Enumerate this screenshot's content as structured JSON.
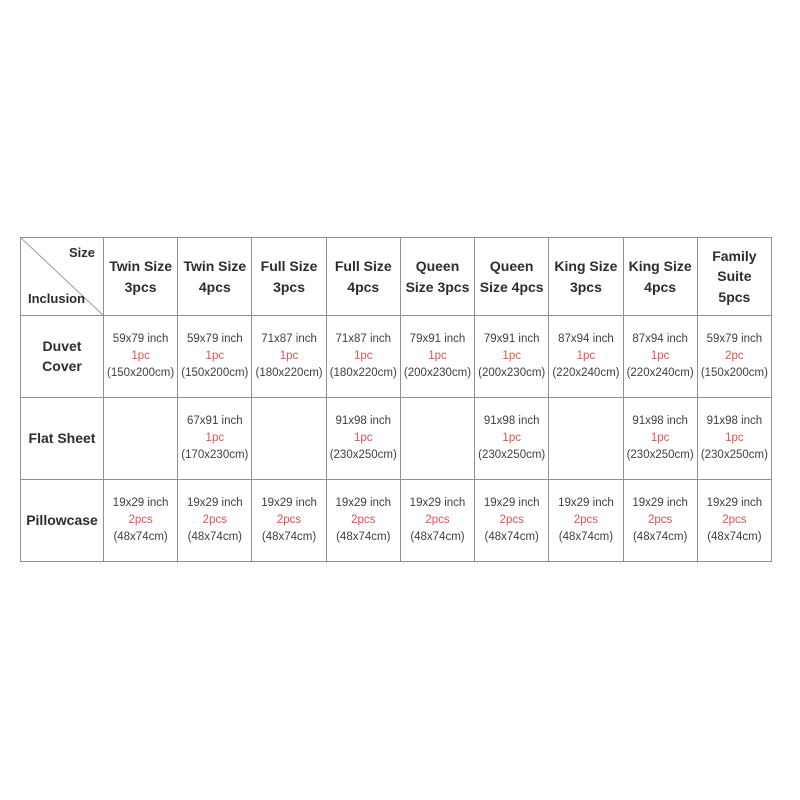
{
  "chart_data": {
    "type": "table",
    "corner": {
      "size_label": "Size",
      "inclusion_label": "Inclusion"
    },
    "columns": [
      {
        "id": "twin-size-3pcs",
        "label": "Twin Size\n3pcs"
      },
      {
        "id": "twin-size-4pcs",
        "label": "Twin Size\n4pcs"
      },
      {
        "id": "full-size-3pcs",
        "label": "Full Size\n3pcs"
      },
      {
        "id": "full-size-4pcs",
        "label": "Full Size\n4pcs"
      },
      {
        "id": "queen-size-3pcs",
        "label": "Queen\nSize 3pcs"
      },
      {
        "id": "queen-size-4pcs",
        "label": "Queen\nSize 4pcs"
      },
      {
        "id": "king-size-3pcs",
        "label": "King Size\n3pcs"
      },
      {
        "id": "king-size-4pcs",
        "label": "King Size\n4pcs"
      },
      {
        "id": "family-suite-5pcs",
        "label": "Family\nSuite 5pcs"
      }
    ],
    "rows": [
      {
        "label": "Duvet Cover",
        "cells": [
          {
            "inch": "59x79 inch",
            "qty": "1pc",
            "cm": "(150x200cm)"
          },
          {
            "inch": "59x79 inch",
            "qty": "1pc",
            "cm": "(150x200cm)"
          },
          {
            "inch": "71x87 inch",
            "qty": "1pc",
            "cm": "(180x220cm)"
          },
          {
            "inch": "71x87 inch",
            "qty": "1pc",
            "cm": "(180x220cm)"
          },
          {
            "inch": "79x91 inch",
            "qty": "1pc",
            "cm": "(200x230cm)"
          },
          {
            "inch": "79x91 inch",
            "qty": "1pc",
            "cm": "(200x230cm)"
          },
          {
            "inch": "87x94 inch",
            "qty": "1pc",
            "cm": "(220x240cm)"
          },
          {
            "inch": "87x94 inch",
            "qty": "1pc",
            "cm": "(220x240cm)"
          },
          {
            "inch": "59x79 inch",
            "qty": "2pc",
            "cm": "(150x200cm)"
          }
        ]
      },
      {
        "label": "Flat Sheet",
        "cells": [
          null,
          {
            "inch": "67x91 inch",
            "qty": "1pc",
            "cm": "(170x230cm)"
          },
          null,
          {
            "inch": "91x98 inch",
            "qty": "1pc",
            "cm": "(230x250cm)"
          },
          null,
          {
            "inch": "91x98 inch",
            "qty": "1pc",
            "cm": "(230x250cm)"
          },
          null,
          {
            "inch": "91x98 inch",
            "qty": "1pc",
            "cm": "(230x250cm)"
          },
          {
            "inch": "91x98 inch",
            "qty": "1pc",
            "cm": "(230x250cm)"
          }
        ]
      },
      {
        "label": "Pillowcase",
        "cells": [
          {
            "inch": "19x29 inch",
            "qty": "2pcs",
            "cm": "(48x74cm)"
          },
          {
            "inch": "19x29 inch",
            "qty": "2pcs",
            "cm": "(48x74cm)"
          },
          {
            "inch": "19x29 inch",
            "qty": "2pcs",
            "cm": "(48x74cm)"
          },
          {
            "inch": "19x29 inch",
            "qty": "2pcs",
            "cm": "(48x74cm)"
          },
          {
            "inch": "19x29 inch",
            "qty": "2pcs",
            "cm": "(48x74cm)"
          },
          {
            "inch": "19x29 inch",
            "qty": "2pcs",
            "cm": "(48x74cm)"
          },
          {
            "inch": "19x29 inch",
            "qty": "2pcs",
            "cm": "(48x74cm)"
          },
          {
            "inch": "19x29 inch",
            "qty": "2pcs",
            "cm": "(48x74cm)"
          },
          {
            "inch": "19x29 inch",
            "qty": "2pcs",
            "cm": "(48x74cm)"
          }
        ]
      }
    ]
  },
  "colors": {
    "quantity_accent": "#e05252",
    "grid_border": "#909090",
    "header_text": "#2d2d2d",
    "cell_text": "#3f3f3f",
    "background": "#ffffff"
  }
}
